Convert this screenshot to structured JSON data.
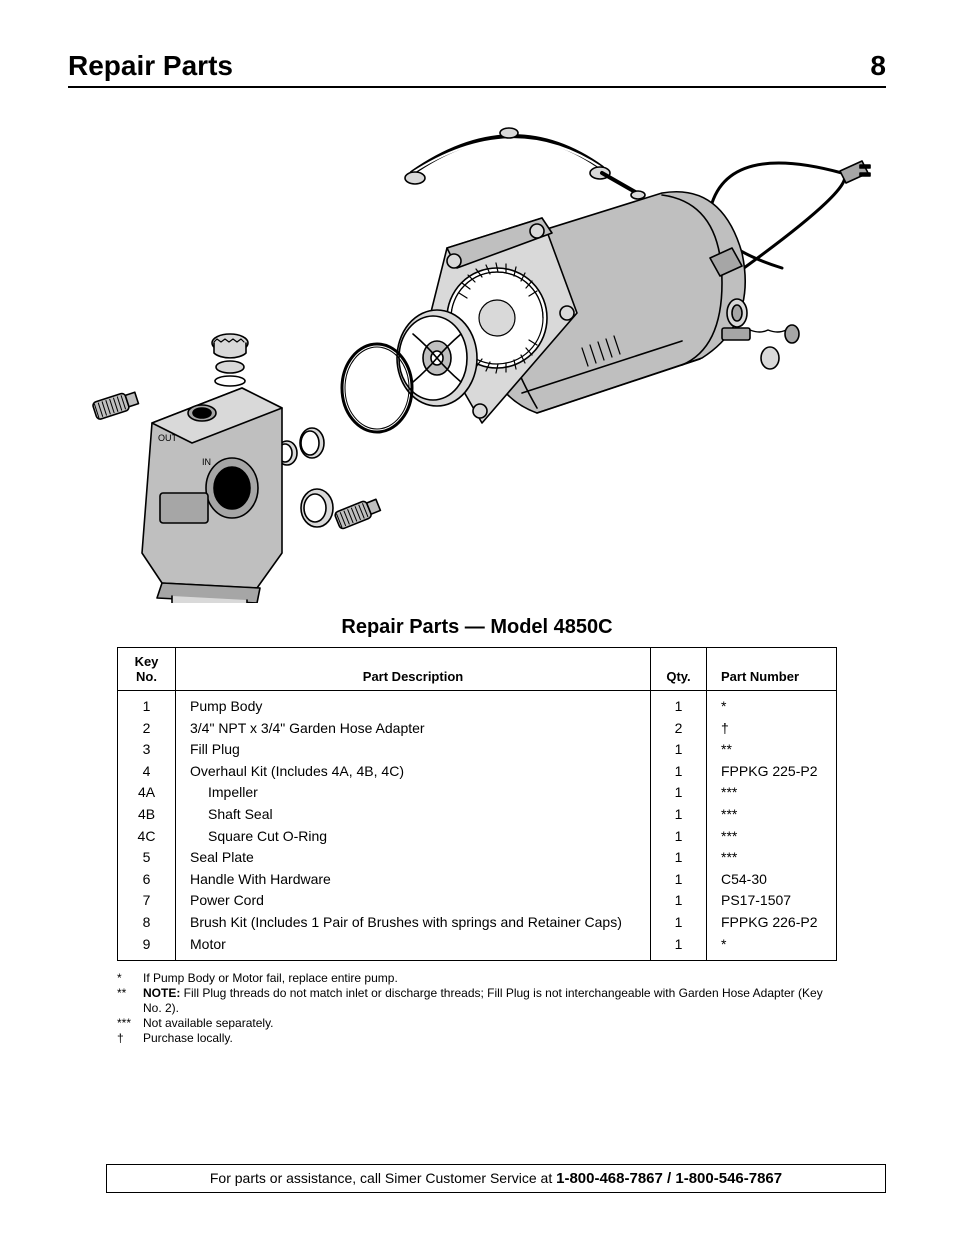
{
  "header": {
    "title": "Repair Parts",
    "page_number": "8"
  },
  "diagram": {
    "type": "technical-exploded-view",
    "stroke": "#000000",
    "fill_light": "#d9d9d9",
    "fill_mid": "#bfbfbf",
    "fill_dark": "#a6a6a6",
    "background": "#ffffff",
    "label_out": "OUT",
    "label_in": "IN"
  },
  "table": {
    "caption": "Repair Parts — Model 4850C",
    "columns": {
      "key_line1": "Key",
      "key_line2": "No.",
      "desc": "Part Description",
      "qty": "Qty.",
      "pn": "Part Number"
    },
    "rows": [
      {
        "key": "1",
        "desc": "Pump Body",
        "indent": false,
        "qty": "1",
        "pn": "*"
      },
      {
        "key": "2",
        "desc": "3/4\" NPT x 3/4\" Garden Hose Adapter",
        "indent": false,
        "qty": "2",
        "pn": "†"
      },
      {
        "key": "3",
        "desc": "Fill Plug",
        "indent": false,
        "qty": "1",
        "pn": "**"
      },
      {
        "key": "4",
        "desc": "Overhaul Kit (Includes 4A, 4B, 4C)",
        "indent": false,
        "qty": "1",
        "pn": "FPPKG 225-P2"
      },
      {
        "key": "4A",
        "desc": "Impeller",
        "indent": true,
        "qty": "1",
        "pn": "***"
      },
      {
        "key": "4B",
        "desc": "Shaft Seal",
        "indent": true,
        "qty": "1",
        "pn": "***"
      },
      {
        "key": "4C",
        "desc": "Square Cut O-Ring",
        "indent": true,
        "qty": "1",
        "pn": "***"
      },
      {
        "key": "5",
        "desc": "Seal Plate",
        "indent": false,
        "qty": "1",
        "pn": "***"
      },
      {
        "key": "6",
        "desc": "Handle With Hardware",
        "indent": false,
        "qty": "1",
        "pn": "C54-30"
      },
      {
        "key": "7",
        "desc": "Power Cord",
        "indent": false,
        "qty": "1",
        "pn": "PS17-1507"
      },
      {
        "key": "8",
        "desc": "Brush Kit (Includes 1 Pair of Brushes with springs and Retainer Caps)",
        "indent": false,
        "qty": "1",
        "pn": "FPPKG 226-P2"
      },
      {
        "key": "9",
        "desc": "Motor",
        "indent": false,
        "qty": "1",
        "pn": "*"
      }
    ]
  },
  "footnotes": [
    {
      "symbol": "*",
      "text": "If Pump Body or Motor fail, replace entire pump."
    },
    {
      "symbol": "**",
      "text": "<b>NOTE:</b> Fill Plug threads do not match inlet or discharge threads; Fill Plug is not interchangeable with Garden Hose Adapter (Key No. 2)."
    },
    {
      "symbol": "***",
      "text": "Not available separately."
    },
    {
      "symbol": "†",
      "text": "Purchase locally."
    }
  ],
  "footer": {
    "prefix": "For parts or assistance, call Simer Customer Service at ",
    "phones": "1-800-468-7867 / 1-800-546-7867"
  }
}
